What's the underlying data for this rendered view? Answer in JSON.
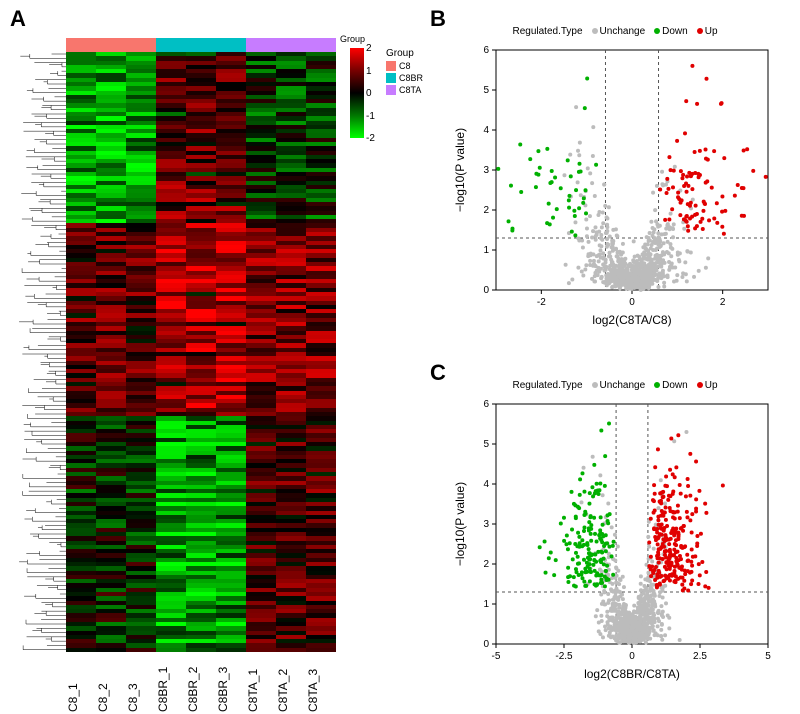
{
  "panels": {
    "A": "A",
    "B": "B",
    "C": "C"
  },
  "heatmap": {
    "cols": [
      "C8_1",
      "C8_2",
      "C8_3",
      "C8BR_1",
      "C8BR_2",
      "C8BR_3",
      "C8TA_1",
      "C8TA_2",
      "C8TA_3"
    ],
    "group_label": "Group",
    "group_colors": {
      "C8": "#F8766D",
      "C8BR": "#00BFC4",
      "C8TA": "#C77CFF"
    },
    "group_order": [
      "C8",
      "C8",
      "C8",
      "C8BR",
      "C8BR",
      "C8BR",
      "C8TA",
      "C8TA",
      "C8TA"
    ],
    "color_low": "#00ff00",
    "color_mid": "#000000",
    "color_high": "#ff0000",
    "scale_ticks": [
      2,
      1,
      0,
      -1,
      -2
    ],
    "n_rows": 140,
    "seed_base": 17
  },
  "volcano_legend": {
    "title": "Regulated.Type",
    "items": [
      {
        "label": "Unchange",
        "color": "#bcbcbc"
      },
      {
        "label": "Down",
        "color": "#00b000"
      },
      {
        "label": "Up",
        "color": "#e00000"
      }
    ]
  },
  "volcano_b": {
    "xlabel": "log2(C8TA/C8)",
    "ylabel": "−log10(P value)",
    "xlim": [
      -3,
      3
    ],
    "ylim": [
      0,
      6
    ],
    "xticks": [
      -2,
      0,
      2
    ],
    "yticks": [
      0,
      1,
      2,
      3,
      4,
      5,
      6
    ],
    "fc_cut": 0.585,
    "pcut": 1.301,
    "n_gray": 750,
    "n_green": 45,
    "n_red": 95,
    "colors": {
      "gray": "#bcbcbc",
      "green": "#00b000",
      "red": "#e00000"
    },
    "point_r": 2.0,
    "axis_color": "#000000",
    "grid_dash": "3,3"
  },
  "volcano_c": {
    "xlabel": "log2(C8BR/C8TA)",
    "ylabel": "−log10(P value)",
    "xlim": [
      -5,
      5
    ],
    "ylim": [
      0,
      6
    ],
    "xticks": [
      -5.0,
      -2.5,
      0.0,
      2.5,
      5.0
    ],
    "yticks": [
      0,
      1,
      2,
      3,
      4,
      5,
      6
    ],
    "fc_cut": 0.585,
    "pcut": 1.301,
    "n_gray": 900,
    "n_green": 170,
    "n_red": 260,
    "colors": {
      "gray": "#bcbcbc",
      "green": "#00b000",
      "red": "#e00000"
    },
    "point_r": 2.0,
    "axis_color": "#000000",
    "grid_dash": "3,3"
  }
}
